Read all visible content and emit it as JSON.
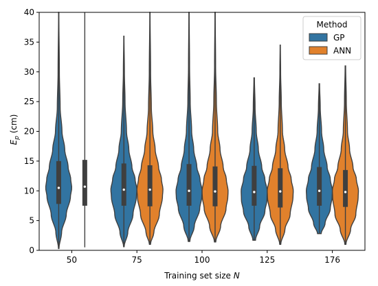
{
  "chart_data": {
    "type": "violin",
    "xlabel_text": "Training set size ",
    "xlabel_var": "N",
    "ylabel_var": "E",
    "ylabel_sub": "p",
    "ylabel_unit": " (cm)",
    "ylim": [
      0,
      40
    ],
    "yticks": [
      0,
      5,
      10,
      15,
      20,
      25,
      30,
      35,
      40
    ],
    "categories": [
      "50",
      "75",
      "100",
      "125",
      "176"
    ],
    "legend": {
      "title": "Method",
      "placement": "upper right"
    },
    "series": [
      {
        "name": "GP",
        "color": "#3274a1",
        "violins": [
          {
            "category": "50",
            "q1": 7.8,
            "median": 10.5,
            "q3": 15.0,
            "lo": 0.3,
            "hi": 40,
            "whisker_hi": 40,
            "width": [
              [
                0.3,
                0.02
              ],
              [
                3,
                0.22
              ],
              [
                6,
                0.58
              ],
              [
                9,
                0.9
              ],
              [
                10.5,
                1.0
              ],
              [
                12,
                0.92
              ],
              [
                14,
                0.72
              ],
              [
                17,
                0.46
              ],
              [
                20,
                0.25
              ],
              [
                24,
                0.11
              ],
              [
                30,
                0.05
              ],
              [
                40,
                0.01
              ]
            ]
          },
          {
            "category": "75",
            "q1": 7.5,
            "median": 10.2,
            "q3": 14.6,
            "lo": 0.6,
            "hi": 36,
            "whisker_hi": 36,
            "width": [
              [
                0.6,
                0.02
              ],
              [
                3,
                0.3
              ],
              [
                6,
                0.7
              ],
              [
                9,
                0.96
              ],
              [
                10.2,
                1.0
              ],
              [
                12,
                0.86
              ],
              [
                14,
                0.62
              ],
              [
                17,
                0.38
              ],
              [
                20,
                0.2
              ],
              [
                25,
                0.09
              ],
              [
                30,
                0.04
              ],
              [
                36,
                0.01
              ]
            ]
          },
          {
            "category": "100",
            "q1": 7.5,
            "median": 10.0,
            "q3": 14.5,
            "lo": 1.5,
            "hi": 40,
            "whisker_hi": 40,
            "width": [
              [
                1.5,
                0.06
              ],
              [
                4,
                0.4
              ],
              [
                7,
                0.82
              ],
              [
                9,
                0.98
              ],
              [
                10,
                1.0
              ],
              [
                12,
                0.84
              ],
              [
                14,
                0.6
              ],
              [
                17,
                0.36
              ],
              [
                20,
                0.2
              ],
              [
                25,
                0.09
              ],
              [
                31,
                0.04
              ],
              [
                40,
                0.01
              ]
            ]
          },
          {
            "category": "125",
            "q1": 7.5,
            "median": 9.8,
            "q3": 14.2,
            "lo": 1.7,
            "hi": 29,
            "whisker_hi": 29,
            "width": [
              [
                1.7,
                0.1
              ],
              [
                4,
                0.42
              ],
              [
                6.5,
                0.82
              ],
              [
                8.5,
                0.98
              ],
              [
                10,
                1.0
              ],
              [
                12,
                0.82
              ],
              [
                14,
                0.58
              ],
              [
                17,
                0.32
              ],
              [
                20,
                0.16
              ],
              [
                24,
                0.07
              ],
              [
                29,
                0.02
              ]
            ]
          },
          {
            "category": "176",
            "q1": 7.5,
            "median": 10.0,
            "q3": 14.0,
            "lo": 2.8,
            "hi": 28,
            "whisker_hi": 28,
            "width": [
              [
                2.8,
                0.14
              ],
              [
                4.5,
                0.44
              ],
              [
                7,
                0.84
              ],
              [
                9,
                0.98
              ],
              [
                10,
                1.0
              ],
              [
                12,
                0.84
              ],
              [
                14,
                0.6
              ],
              [
                17,
                0.34
              ],
              [
                20,
                0.17
              ],
              [
                24,
                0.07
              ],
              [
                28,
                0.02
              ]
            ]
          }
        ]
      },
      {
        "name": "ANN",
        "color": "#e1812c",
        "violins": [
          {
            "category": "50",
            "q1": 7.5,
            "median": 10.7,
            "q3": 15.2,
            "lo": 0.5,
            "hi": 40,
            "whisker_hi": 40,
            "width": [
              [
                0.5,
                0.0
              ],
              [
                40,
                0.0
              ]
            ]
          },
          {
            "category": "75",
            "q1": 7.4,
            "median": 10.2,
            "q3": 14.3,
            "lo": 1.0,
            "hi": 40,
            "whisker_hi": 40,
            "width": [
              [
                1.0,
                0.04
              ],
              [
                3,
                0.3
              ],
              [
                6,
                0.72
              ],
              [
                9,
                0.96
              ],
              [
                10.2,
                1.0
              ],
              [
                12,
                0.88
              ],
              [
                14,
                0.66
              ],
              [
                17,
                0.4
              ],
              [
                20,
                0.22
              ],
              [
                24,
                0.11
              ],
              [
                30,
                0.05
              ],
              [
                40,
                0.01
              ]
            ]
          },
          {
            "category": "100",
            "q1": 7.4,
            "median": 9.9,
            "q3": 14.1,
            "lo": 1.4,
            "hi": 40,
            "whisker_hi": 40,
            "width": [
              [
                1.4,
                0.05
              ],
              [
                4,
                0.42
              ],
              [
                7,
                0.84
              ],
              [
                9,
                0.98
              ],
              [
                9.9,
                1.0
              ],
              [
                12,
                0.86
              ],
              [
                14,
                0.62
              ],
              [
                17,
                0.38
              ],
              [
                20,
                0.2
              ],
              [
                25,
                0.1
              ],
              [
                31,
                0.04
              ],
              [
                40,
                0.01
              ]
            ]
          },
          {
            "category": "125",
            "q1": 7.2,
            "median": 9.9,
            "q3": 13.8,
            "lo": 1.0,
            "hi": 34.5,
            "whisker_hi": 34.5,
            "width": [
              [
                1.0,
                0.04
              ],
              [
                3.5,
                0.36
              ],
              [
                6,
                0.76
              ],
              [
                9,
                0.98
              ],
              [
                10,
                1.0
              ],
              [
                12,
                0.84
              ],
              [
                14,
                0.6
              ],
              [
                17,
                0.34
              ],
              [
                20,
                0.17
              ],
              [
                25,
                0.08
              ],
              [
                30,
                0.03
              ],
              [
                34.5,
                0.01
              ]
            ]
          },
          {
            "category": "176",
            "q1": 7.3,
            "median": 9.8,
            "q3": 13.5,
            "lo": 1.0,
            "hi": 31,
            "whisker_hi": 31,
            "width": [
              [
                1.0,
                0.04
              ],
              [
                3.5,
                0.4
              ],
              [
                6,
                0.8
              ],
              [
                9,
                0.98
              ],
              [
                10,
                1.0
              ],
              [
                12,
                0.84
              ],
              [
                14,
                0.58
              ],
              [
                17,
                0.32
              ],
              [
                20,
                0.16
              ],
              [
                25,
                0.07
              ],
              [
                31,
                0.02
              ]
            ]
          }
        ]
      }
    ]
  }
}
